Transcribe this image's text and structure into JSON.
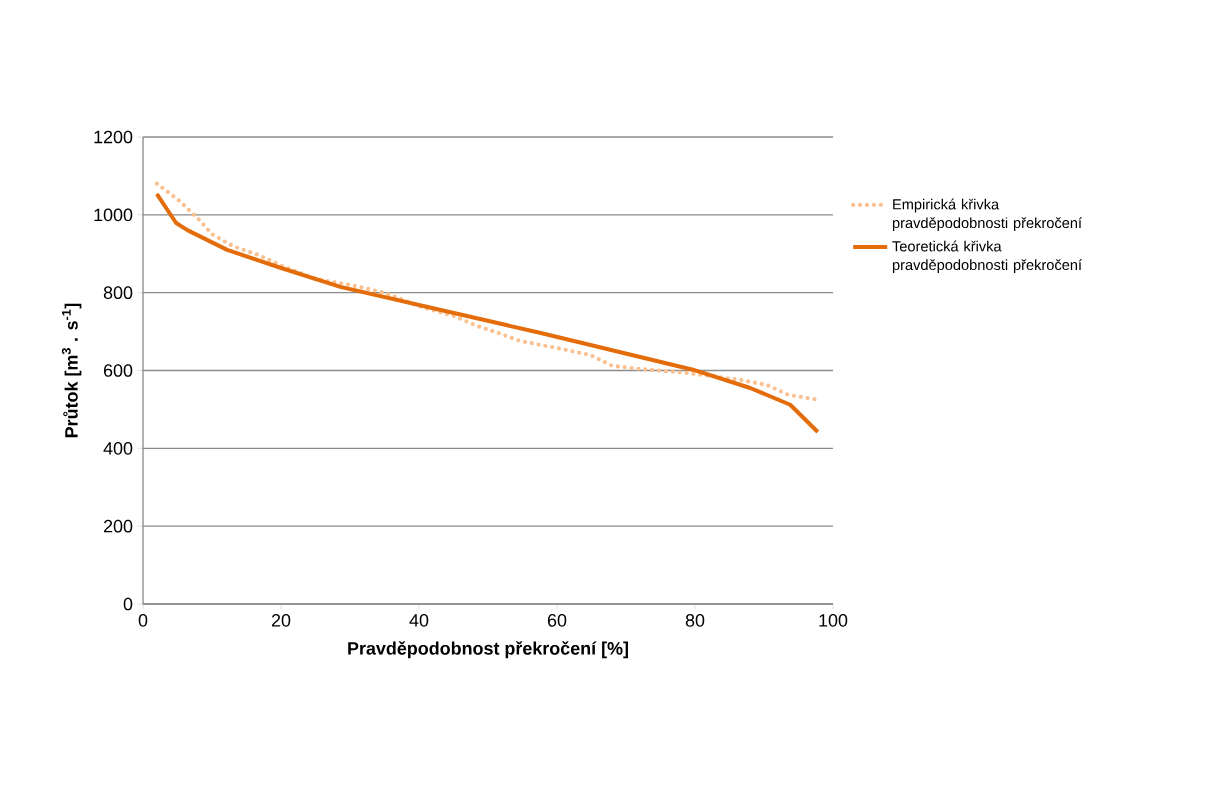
{
  "chart_data": {
    "type": "line",
    "xlabel": "Pravděpodobnost překročení [%]",
    "ylabel": "Průtok [m$^{3}$ . s$^{-1}$]",
    "xlim": [
      0,
      100
    ],
    "ylim": [
      0,
      1200
    ],
    "xticks": [
      0,
      20,
      40,
      60,
      80,
      100
    ],
    "yticks": [
      0,
      200,
      400,
      600,
      800,
      1000,
      1200
    ],
    "grid": "y",
    "legend": "right",
    "marker": "none",
    "series": [
      {
        "name": "Empirická křivka pravděpodobnosti překročení",
        "color": "#fac090",
        "line_style": "dotted",
        "x": [
          2,
          5,
          8,
          10,
          13,
          17,
          20,
          25,
          30,
          35,
          40,
          45,
          48.8,
          51.4,
          54.6,
          59.9,
          64.8,
          68,
          72,
          78.7,
          86.5,
          90.4,
          93.6,
          97.8
        ],
        "values": [
          1080,
          1040,
          990,
          950,
          920,
          895,
          870,
          835,
          820,
          800,
          765,
          740,
          712,
          697,
          676,
          658,
          640,
          612,
          604,
          594,
          576,
          563,
          537,
          525
        ]
      },
      {
        "name": "Teoretická křivka pravděpodobnosti překročení",
        "color": "#e46c0a",
        "line_style": "solid",
        "x": [
          2,
          4.8,
          6.5,
          12.2,
          19.9,
          28.6,
          43,
          57.5,
          79.7,
          88,
          93.8,
          97.8
        ],
        "values": [
          1054,
          979,
          960,
          910,
          864,
          815,
          756,
          697,
          602,
          555,
          512,
          442
        ]
      }
    ]
  }
}
